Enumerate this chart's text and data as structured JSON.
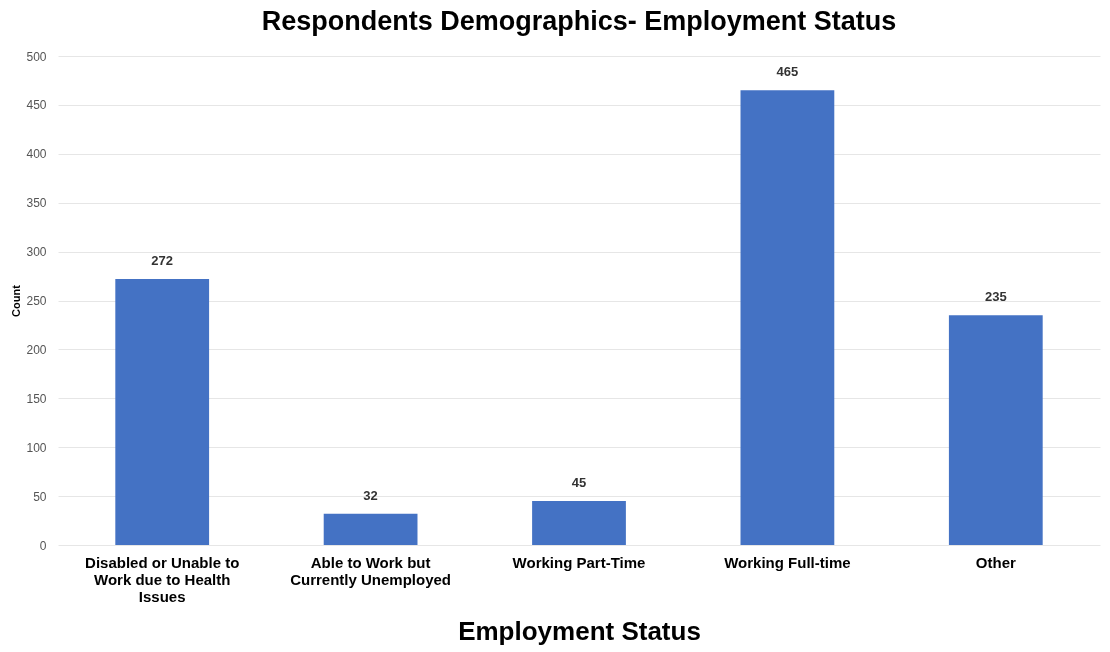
{
  "chart_data": {
    "type": "bar",
    "title": "Respondents Demographics- Employment Status",
    "xlabel": "Employment Status",
    "ylabel": "Count",
    "categories": [
      "Disabled or Unable to Work due to Health Issues",
      "Able to Work but Currently Unemployed",
      "Working Part-Time",
      "Working Full-time",
      "Other"
    ],
    "values": [
      272,
      32,
      45,
      465,
      235
    ],
    "color": "#4472c4",
    "ylim": [
      0,
      500
    ],
    "yticks": [
      0,
      50,
      100,
      150,
      200,
      250,
      300,
      350,
      400,
      450,
      500
    ],
    "grid": "y",
    "data_labels": true
  }
}
